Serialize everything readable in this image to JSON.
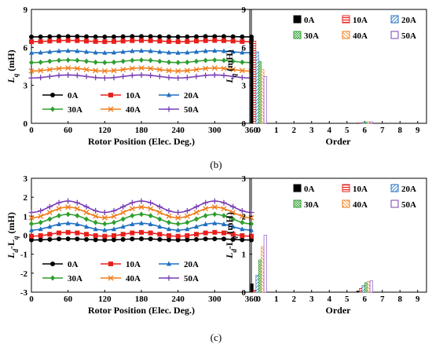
{
  "panel_labels": {
    "b": "(b)",
    "c": "(c)"
  },
  "chart_data": [
    {
      "id": "b-left",
      "type": "line",
      "title": "",
      "xlabel": "Rotor Position (Elec. Deg.)",
      "ylabel": "L_q (mH)",
      "xlim": [
        0,
        360
      ],
      "ylim": [
        0,
        9
      ],
      "xticks": [
        0,
        60,
        120,
        180,
        240,
        300,
        360
      ],
      "yticks": [
        0,
        3,
        6,
        9
      ],
      "grid": false,
      "legend": "bottom-inside",
      "series": [
        {
          "name": "0A",
          "color": "#000000",
          "marker": "circle",
          "mean": 6.85,
          "amp": 0.02
        },
        {
          "name": "10A",
          "color": "#e8201c",
          "marker": "square",
          "mean": 6.5,
          "amp": 0.05
        },
        {
          "name": "20A",
          "color": "#1f6fc2",
          "marker": "triangle",
          "mean": 5.65,
          "amp": 0.08
        },
        {
          "name": "30A",
          "color": "#2e9e2e",
          "marker": "diamond",
          "mean": 4.9,
          "amp": 0.1
        },
        {
          "name": "40A",
          "color": "#f07d1a",
          "marker": "x",
          "mean": 4.25,
          "amp": 0.12
        },
        {
          "name": "50A",
          "color": "#7a3fb5",
          "marker": "plus",
          "mean": 3.7,
          "amp": 0.12
        }
      ]
    },
    {
      "id": "b-right",
      "type": "bar",
      "title": "",
      "xlabel": "Order",
      "ylabel": "L_q (mH)",
      "xlim": [
        -0.5,
        9.5
      ],
      "ylim": [
        0,
        9
      ],
      "xticks": [
        0,
        1,
        2,
        3,
        4,
        5,
        6,
        7,
        8,
        9
      ],
      "yticks": [
        0,
        3,
        6,
        9
      ],
      "grid": false,
      "legend": "top-right",
      "series": [
        {
          "name": "0A",
          "color": "#000000",
          "pattern": "solid",
          "values": {
            "0": 6.85,
            "6": 0.02
          }
        },
        {
          "name": "10A",
          "color": "#e8201c",
          "pattern": "hline",
          "values": {
            "0": 6.5,
            "6": 0.05
          }
        },
        {
          "name": "20A",
          "color": "#1f6fc2",
          "pattern": "diag",
          "values": {
            "0": 5.65,
            "6": 0.08
          }
        },
        {
          "name": "30A",
          "color": "#2e9e2e",
          "pattern": "check",
          "values": {
            "0": 4.9,
            "6": 0.1
          }
        },
        {
          "name": "40A",
          "color": "#f07d1a",
          "pattern": "diag2",
          "values": {
            "0": 4.25,
            "6": 0.12
          }
        },
        {
          "name": "50A",
          "color": "#7a3fb5",
          "pattern": "hollow",
          "values": {
            "0": 3.7,
            "6": 0.12
          }
        }
      ]
    },
    {
      "id": "c-left",
      "type": "line",
      "title": "",
      "xlabel": "Rotor Position (Elec. Deg.)",
      "ylabel": "L_d-L_q (mH)",
      "xlim": [
        0,
        360
      ],
      "ylim": [
        -3,
        3
      ],
      "xticks": [
        0,
        60,
        120,
        180,
        240,
        300,
        360
      ],
      "yticks": [
        -3,
        -2,
        -1,
        0,
        1,
        2,
        3
      ],
      "grid": false,
      "legend": "bottom-inside",
      "series": [
        {
          "name": "0A",
          "color": "#000000",
          "marker": "circle",
          "mean": -0.22,
          "amp": 0.03
        },
        {
          "name": "10A",
          "color": "#e8201c",
          "marker": "square",
          "mean": 0.05,
          "amp": 0.1
        },
        {
          "name": "20A",
          "color": "#1f6fc2",
          "marker": "triangle",
          "mean": 0.45,
          "amp": 0.18
        },
        {
          "name": "30A",
          "color": "#2e9e2e",
          "marker": "diamond",
          "mean": 0.85,
          "amp": 0.25
        },
        {
          "name": "40A",
          "color": "#f07d1a",
          "marker": "x",
          "mean": 1.2,
          "amp": 0.28
        },
        {
          "name": "50A",
          "color": "#7a3fb5",
          "marker": "plus",
          "mean": 1.5,
          "amp": 0.3
        }
      ]
    },
    {
      "id": "c-right",
      "type": "bar",
      "title": "",
      "xlabel": "Order",
      "ylabel": "L_d-L_q (mH)",
      "xlim": [
        -0.5,
        9.5
      ],
      "ylim": [
        0,
        3
      ],
      "xticks": [
        0,
        1,
        2,
        3,
        4,
        5,
        6,
        7,
        8,
        9
      ],
      "yticks": [
        0,
        1,
        2,
        3
      ],
      "grid": false,
      "legend": "top-right",
      "series": [
        {
          "name": "0A",
          "color": "#000000",
          "pattern": "solid",
          "values": {
            "0": 0.22,
            "6": 0.03
          }
        },
        {
          "name": "10A",
          "color": "#e8201c",
          "pattern": "hline",
          "values": {
            "0": 0.05,
            "6": 0.1
          }
        },
        {
          "name": "20A",
          "color": "#1f6fc2",
          "pattern": "diag",
          "values": {
            "0": 0.45,
            "6": 0.18
          }
        },
        {
          "name": "30A",
          "color": "#2e9e2e",
          "pattern": "check",
          "values": {
            "0": 0.85,
            "6": 0.25
          }
        },
        {
          "name": "40A",
          "color": "#f07d1a",
          "pattern": "diag2",
          "values": {
            "0": 1.2,
            "6": 0.28
          }
        },
        {
          "name": "50A",
          "color": "#7a3fb5",
          "pattern": "hollow",
          "values": {
            "0": 1.5,
            "6": 0.3
          }
        }
      ]
    }
  ]
}
